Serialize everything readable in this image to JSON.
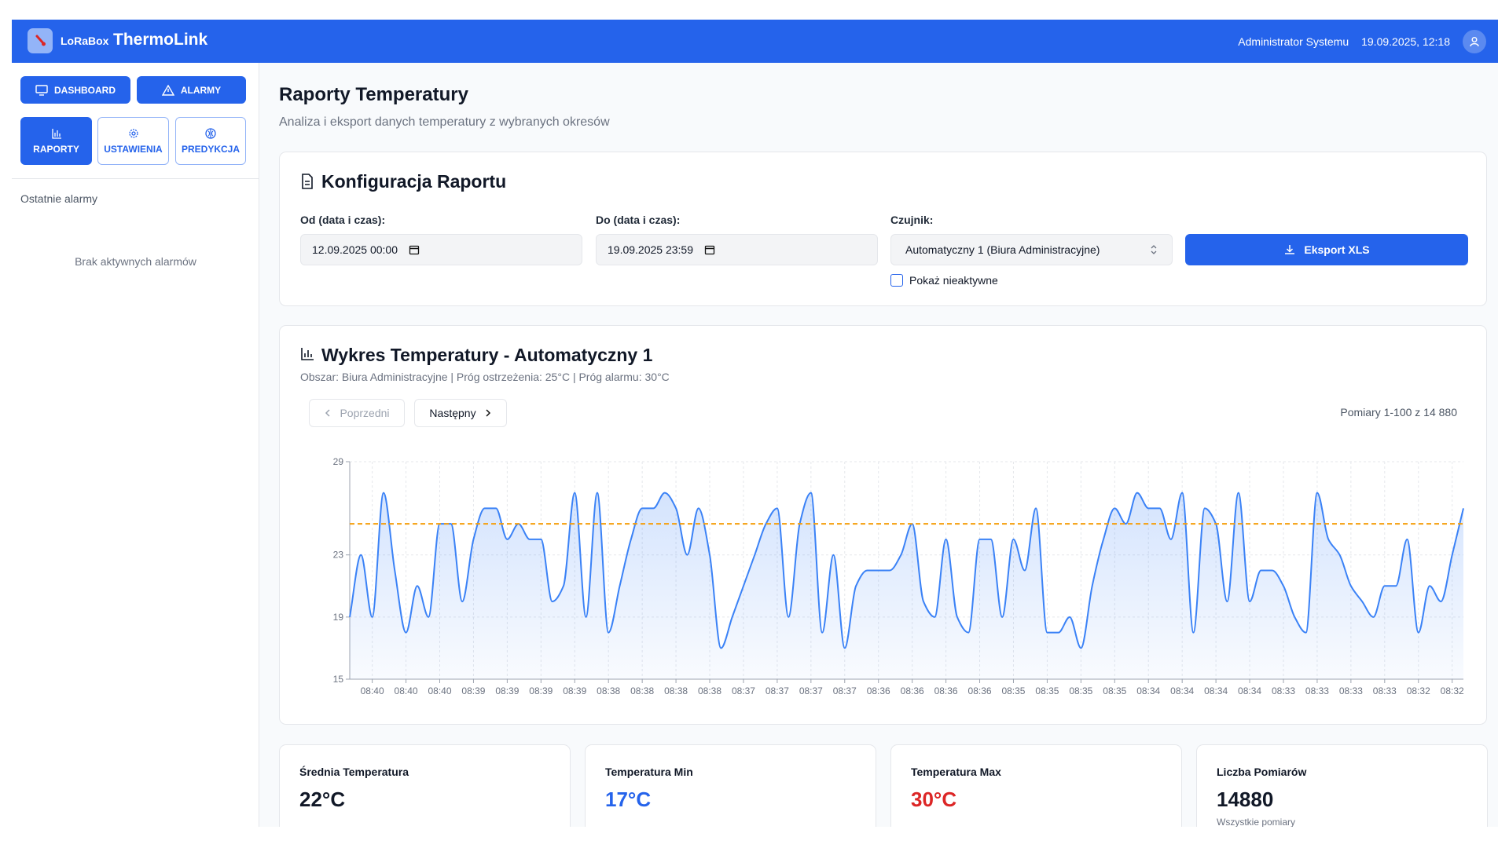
{
  "header": {
    "brand_small": "LoRaBox",
    "brand": "ThermoLink",
    "user": "Administrator Systemu",
    "datetime": "19.09.2025, 12:18"
  },
  "sidebar": {
    "nav": [
      "DASHBOARD",
      "ALARMY",
      "RAPORTY",
      "USTAWIENIA",
      "PREDYKCJA"
    ],
    "recent_alarms_title": "Ostatnie alarmy",
    "no_alarms": "Brak aktywnych alarmów"
  },
  "page": {
    "title": "Raporty Temperatury",
    "subtitle": "Analiza i eksport danych temperatury z wybranych okresów"
  },
  "config": {
    "title": "Konfiguracja Raportu",
    "from_label": "Od (data i czas):",
    "from_value": "12.09.2025 00:00",
    "to_label": "Do (data i czas):",
    "to_value": "19.09.2025 23:59",
    "sensor_label": "Czujnik:",
    "sensor_value": "Automatyczny 1 (Biura Administracyjne)",
    "export": "Eksport XLS",
    "show_inactive": "Pokaż nieaktywne"
  },
  "chart_panel": {
    "prev": "Poprzedni",
    "next": "Następny",
    "range": "Pomiary 1-100 z 14 880"
  },
  "chart_data": {
    "type": "line",
    "title": "Wykres Temperatury - Automatyczny 1",
    "subtitle": "Obszar: Biura Administracyjne | Próg ostrzeżenia: 25°C | Próg alarmu: 30°C",
    "categories": [
      null,
      null,
      "08:40",
      null,
      null,
      "08:40",
      null,
      null,
      "08:40",
      null,
      null,
      "08:39",
      null,
      null,
      "08:39",
      null,
      null,
      "08:39",
      null,
      null,
      "08:39",
      null,
      null,
      "08:38",
      null,
      null,
      "08:38",
      null,
      null,
      "08:38",
      null,
      null,
      "08:38",
      null,
      null,
      "08:37",
      null,
      null,
      "08:37",
      null,
      null,
      "08:37",
      null,
      null,
      "08:37",
      null,
      null,
      "08:36",
      null,
      null,
      "08:36",
      null,
      null,
      "08:36",
      null,
      null,
      "08:36",
      null,
      null,
      "08:35",
      null,
      null,
      "08:35",
      null,
      null,
      "08:35",
      null,
      null,
      "08:35",
      null,
      null,
      "08:34",
      null,
      null,
      "08:34",
      null,
      null,
      "08:34",
      null,
      null,
      "08:34",
      null,
      null,
      "08:33",
      null,
      null,
      "08:33",
      null,
      null,
      "08:33",
      null,
      null,
      "08:33",
      null,
      null,
      "08:32",
      null,
      null,
      "08:32",
      null
    ],
    "values": [
      19,
      23,
      19,
      27,
      22,
      18,
      21,
      19,
      25,
      25,
      20,
      24,
      26,
      26,
      24,
      25,
      24,
      24,
      20,
      21,
      27,
      19,
      27,
      18,
      21,
      24,
      26,
      26,
      27,
      26,
      23,
      26,
      23,
      17,
      19,
      21,
      23,
      25,
      26,
      19,
      25,
      27,
      18,
      23,
      17,
      21,
      22,
      22,
      22,
      23,
      25,
      20,
      19,
      24,
      19,
      18,
      24,
      24,
      19,
      24,
      22,
      26,
      18,
      18,
      19,
      17,
      21,
      24,
      26,
      25,
      27,
      26,
      26,
      24,
      27,
      18,
      26,
      25,
      20,
      27,
      20,
      22,
      22,
      21,
      19,
      18,
      27,
      24,
      23,
      21,
      20,
      19,
      21,
      21,
      24,
      18,
      21,
      20,
      23,
      26
    ],
    "color": "#3b82f6",
    "threshold": 25,
    "threshold_color": "#f59e0b",
    "ylim": [
      15,
      29
    ],
    "yticks": [
      15,
      19,
      23,
      29
    ],
    "grid": true
  },
  "stats": [
    {
      "label": "Średnia Temperatura",
      "value": "22°C",
      "color": "#111827"
    },
    {
      "label": "Temperatura Min",
      "value": "17°C",
      "color": "#2563eb"
    },
    {
      "label": "Temperatura Max",
      "value": "30°C",
      "color": "#dc2626"
    },
    {
      "label": "Liczba Pomiarów",
      "value": "14880",
      "color": "#111827",
      "note": "Wszystkie pomiary"
    }
  ]
}
